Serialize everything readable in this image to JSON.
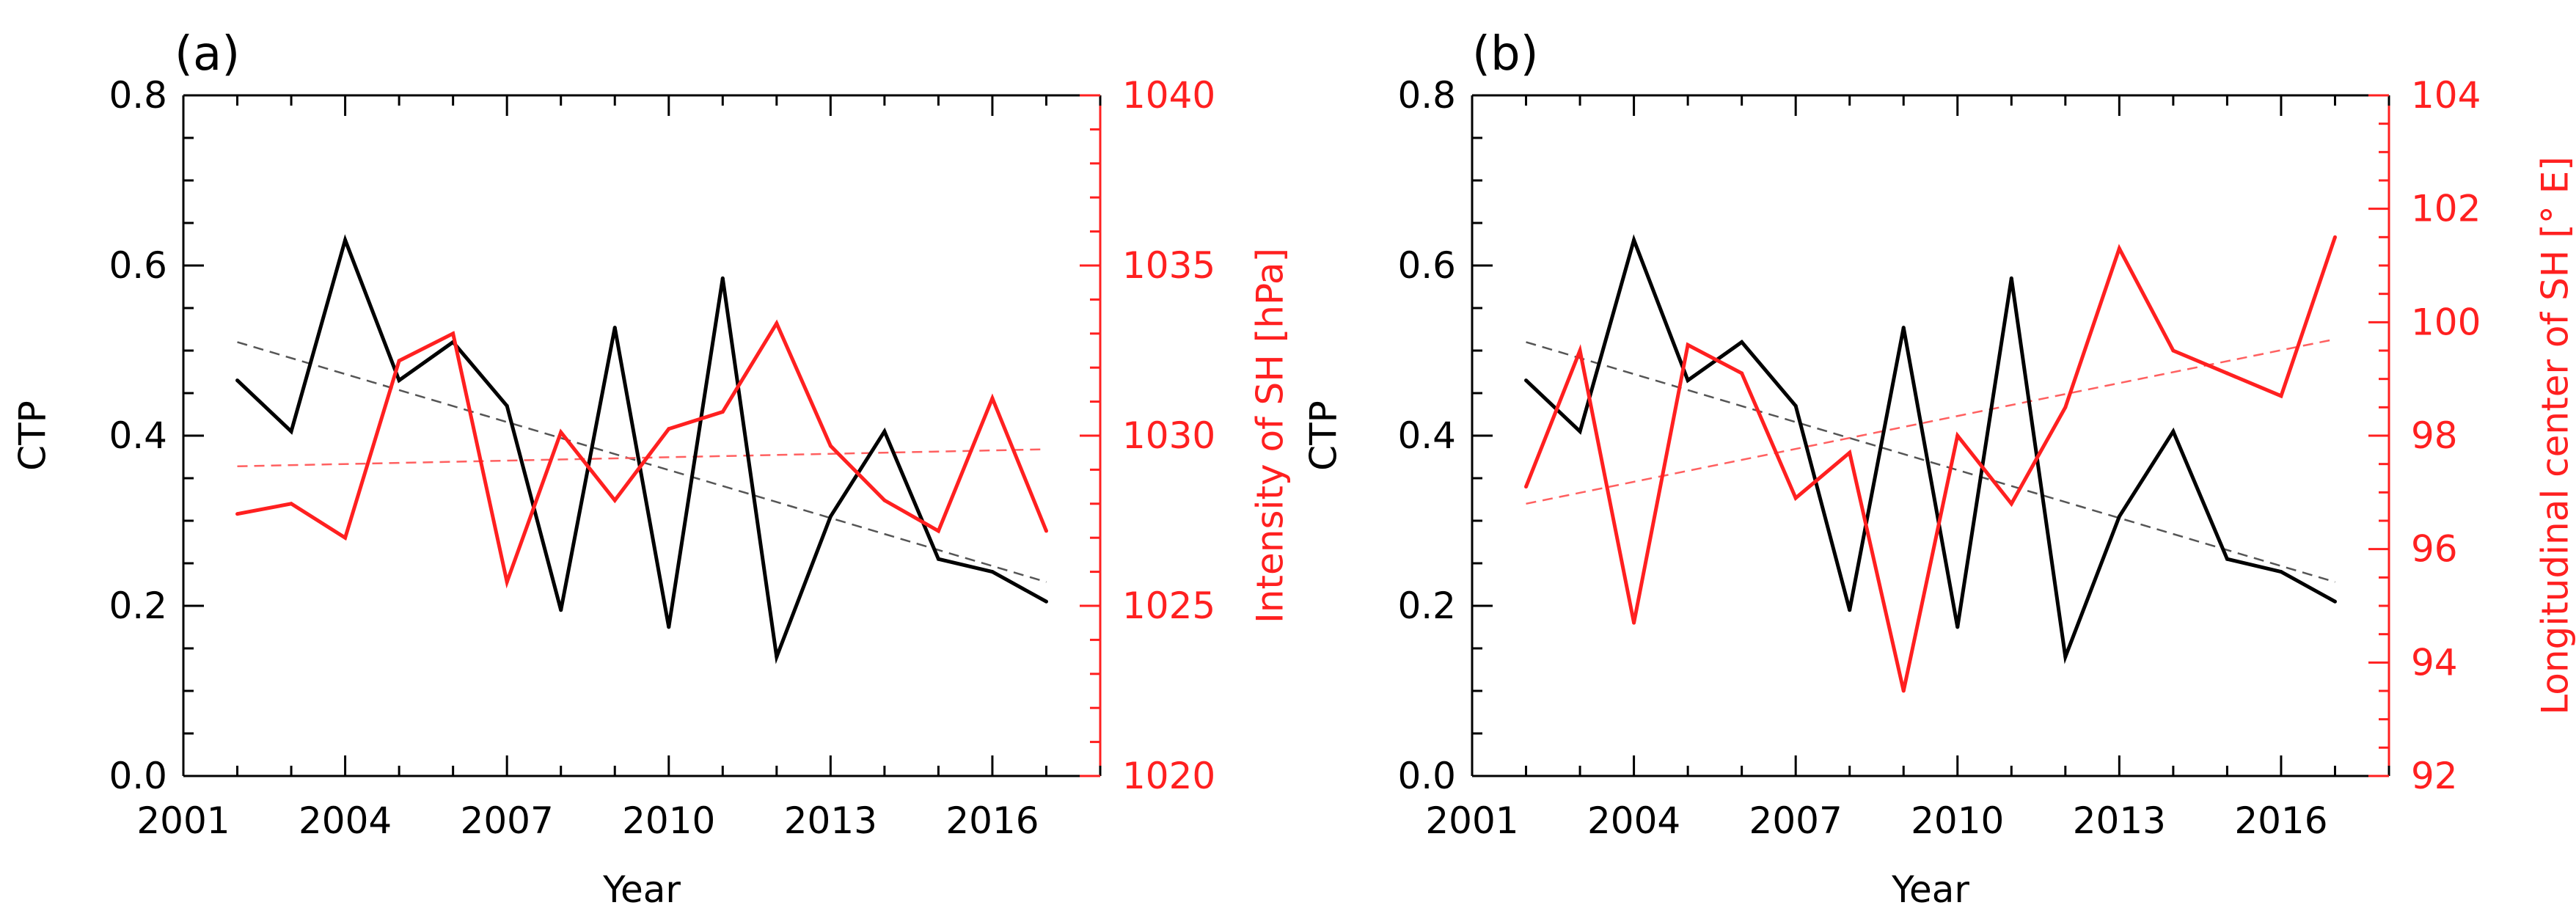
{
  "chart_data": [
    {
      "panel": "(a)",
      "type": "line",
      "xlabel": "Year",
      "ylabel_left": "CTP",
      "ylabel_right": "Intensity of SH [hPa]",
      "x": [
        2002,
        2003,
        2004,
        2005,
        2006,
        2007,
        2008,
        2009,
        2010,
        2011,
        2012,
        2013,
        2014,
        2015,
        2016,
        2017
      ],
      "xlim": [
        2001,
        2018
      ],
      "xticks": [
        "2001",
        "2004",
        "2007",
        "2010",
        "2013",
        "2016"
      ],
      "ylim_left": [
        0.0,
        0.8
      ],
      "yticks_left": [
        "0.0",
        "0.2",
        "0.4",
        "0.6",
        "0.8"
      ],
      "ylim_right": [
        1020,
        1040
      ],
      "yticks_right": [
        "1020",
        "1025",
        "1030",
        "1035",
        "1040"
      ],
      "series": [
        {
          "name": "CTP",
          "axis": "left",
          "color": "#000000",
          "values": [
            0.465,
            0.405,
            0.63,
            0.465,
            0.51,
            0.435,
            0.195,
            0.527,
            0.175,
            0.585,
            0.14,
            0.305,
            0.405,
            0.255,
            0.24,
            0.205
          ]
        },
        {
          "name": "Intensity of SH",
          "axis": "right",
          "color": "#ff2020",
          "values": [
            1027.7,
            1028.0,
            1027.0,
            1032.2,
            1033.0,
            1025.7,
            1030.1,
            1028.1,
            1030.2,
            1030.7,
            1033.3,
            1029.7,
            1028.1,
            1027.2,
            1031.1,
            1027.2
          ]
        }
      ],
      "trends": [
        {
          "axis": "left",
          "color": "#555555",
          "start": [
            2002,
            0.51
          ],
          "end": [
            2017,
            0.228
          ]
        },
        {
          "axis": "right",
          "color": "#ff6060",
          "start": [
            2002,
            1029.1
          ],
          "end": [
            2017,
            1029.6
          ]
        }
      ]
    },
    {
      "panel": "(b)",
      "type": "line",
      "xlabel": "Year",
      "ylabel_left": "CTP",
      "ylabel_right": "Longitudinal center of SH [° E]",
      "x": [
        2002,
        2003,
        2004,
        2005,
        2006,
        2007,
        2008,
        2009,
        2010,
        2011,
        2012,
        2013,
        2014,
        2015,
        2016,
        2017
      ],
      "xlim": [
        2001,
        2018
      ],
      "xticks": [
        "2001",
        "2004",
        "2007",
        "2010",
        "2013",
        "2016"
      ],
      "ylim_left": [
        0.0,
        0.8
      ],
      "yticks_left": [
        "0.0",
        "0.2",
        "0.4",
        "0.6",
        "0.8"
      ],
      "ylim_right": [
        92,
        104
      ],
      "yticks_right": [
        "92",
        "94",
        "96",
        "98",
        "100",
        "102",
        "104"
      ],
      "series": [
        {
          "name": "CTP",
          "axis": "left",
          "color": "#000000",
          "values": [
            0.465,
            0.405,
            0.63,
            0.465,
            0.51,
            0.435,
            0.195,
            0.527,
            0.175,
            0.585,
            0.14,
            0.305,
            0.405,
            0.255,
            0.24,
            0.205
          ]
        },
        {
          "name": "Longitudinal center of SH",
          "axis": "right",
          "color": "#ff2020",
          "values": [
            97.1,
            99.5,
            94.7,
            99.6,
            99.1,
            96.9,
            97.7,
            93.5,
            98.0,
            96.8,
            98.5,
            101.3,
            99.5,
            99.1,
            98.7,
            101.5
          ]
        }
      ],
      "trends": [
        {
          "axis": "left",
          "color": "#555555",
          "start": [
            2002,
            0.51
          ],
          "end": [
            2017,
            0.228
          ]
        },
        {
          "axis": "right",
          "color": "#ff6060",
          "start": [
            2002,
            96.8
          ],
          "end": [
            2017,
            99.7
          ]
        }
      ]
    }
  ]
}
